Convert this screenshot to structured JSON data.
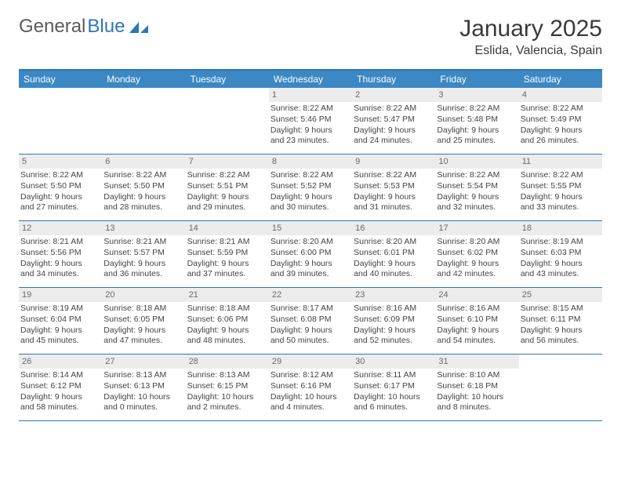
{
  "logo": {
    "word1": "General",
    "word2": "Blue"
  },
  "header": {
    "title": "January 2025",
    "location": "Eslida, Valencia, Spain"
  },
  "dayNames": [
    "Sunday",
    "Monday",
    "Tuesday",
    "Wednesday",
    "Thursday",
    "Friday",
    "Saturday"
  ],
  "colors": {
    "header_bar": "#3b88c4",
    "border": "#2d77b8",
    "daynum_bg": "#ececec",
    "text": "#333333",
    "logo_gray": "#5a5a5a",
    "logo_blue": "#2d77b8",
    "bg": "#ffffff"
  },
  "typography": {
    "title_fontsize_pt": 22,
    "location_fontsize_pt": 12,
    "dayhead_fontsize_pt": 9,
    "cell_fontsize_pt": 8
  },
  "layout": {
    "columns": 7,
    "rows": 5,
    "first_weekday_index": 3
  },
  "weeks": [
    [
      {
        "day": ""
      },
      {
        "day": ""
      },
      {
        "day": ""
      },
      {
        "day": "1",
        "sunrise": "Sunrise: 8:22 AM",
        "sunset": "Sunset: 5:46 PM",
        "daylight1": "Daylight: 9 hours",
        "daylight2": "and 23 minutes."
      },
      {
        "day": "2",
        "sunrise": "Sunrise: 8:22 AM",
        "sunset": "Sunset: 5:47 PM",
        "daylight1": "Daylight: 9 hours",
        "daylight2": "and 24 minutes."
      },
      {
        "day": "3",
        "sunrise": "Sunrise: 8:22 AM",
        "sunset": "Sunset: 5:48 PM",
        "daylight1": "Daylight: 9 hours",
        "daylight2": "and 25 minutes."
      },
      {
        "day": "4",
        "sunrise": "Sunrise: 8:22 AM",
        "sunset": "Sunset: 5:49 PM",
        "daylight1": "Daylight: 9 hours",
        "daylight2": "and 26 minutes."
      }
    ],
    [
      {
        "day": "5",
        "sunrise": "Sunrise: 8:22 AM",
        "sunset": "Sunset: 5:50 PM",
        "daylight1": "Daylight: 9 hours",
        "daylight2": "and 27 minutes."
      },
      {
        "day": "6",
        "sunrise": "Sunrise: 8:22 AM",
        "sunset": "Sunset: 5:50 PM",
        "daylight1": "Daylight: 9 hours",
        "daylight2": "and 28 minutes."
      },
      {
        "day": "7",
        "sunrise": "Sunrise: 8:22 AM",
        "sunset": "Sunset: 5:51 PM",
        "daylight1": "Daylight: 9 hours",
        "daylight2": "and 29 minutes."
      },
      {
        "day": "8",
        "sunrise": "Sunrise: 8:22 AM",
        "sunset": "Sunset: 5:52 PM",
        "daylight1": "Daylight: 9 hours",
        "daylight2": "and 30 minutes."
      },
      {
        "day": "9",
        "sunrise": "Sunrise: 8:22 AM",
        "sunset": "Sunset: 5:53 PM",
        "daylight1": "Daylight: 9 hours",
        "daylight2": "and 31 minutes."
      },
      {
        "day": "10",
        "sunrise": "Sunrise: 8:22 AM",
        "sunset": "Sunset: 5:54 PM",
        "daylight1": "Daylight: 9 hours",
        "daylight2": "and 32 minutes."
      },
      {
        "day": "11",
        "sunrise": "Sunrise: 8:22 AM",
        "sunset": "Sunset: 5:55 PM",
        "daylight1": "Daylight: 9 hours",
        "daylight2": "and 33 minutes."
      }
    ],
    [
      {
        "day": "12",
        "sunrise": "Sunrise: 8:21 AM",
        "sunset": "Sunset: 5:56 PM",
        "daylight1": "Daylight: 9 hours",
        "daylight2": "and 34 minutes."
      },
      {
        "day": "13",
        "sunrise": "Sunrise: 8:21 AM",
        "sunset": "Sunset: 5:57 PM",
        "daylight1": "Daylight: 9 hours",
        "daylight2": "and 36 minutes."
      },
      {
        "day": "14",
        "sunrise": "Sunrise: 8:21 AM",
        "sunset": "Sunset: 5:59 PM",
        "daylight1": "Daylight: 9 hours",
        "daylight2": "and 37 minutes."
      },
      {
        "day": "15",
        "sunrise": "Sunrise: 8:20 AM",
        "sunset": "Sunset: 6:00 PM",
        "daylight1": "Daylight: 9 hours",
        "daylight2": "and 39 minutes."
      },
      {
        "day": "16",
        "sunrise": "Sunrise: 8:20 AM",
        "sunset": "Sunset: 6:01 PM",
        "daylight1": "Daylight: 9 hours",
        "daylight2": "and 40 minutes."
      },
      {
        "day": "17",
        "sunrise": "Sunrise: 8:20 AM",
        "sunset": "Sunset: 6:02 PM",
        "daylight1": "Daylight: 9 hours",
        "daylight2": "and 42 minutes."
      },
      {
        "day": "18",
        "sunrise": "Sunrise: 8:19 AM",
        "sunset": "Sunset: 6:03 PM",
        "daylight1": "Daylight: 9 hours",
        "daylight2": "and 43 minutes."
      }
    ],
    [
      {
        "day": "19",
        "sunrise": "Sunrise: 8:19 AM",
        "sunset": "Sunset: 6:04 PM",
        "daylight1": "Daylight: 9 hours",
        "daylight2": "and 45 minutes."
      },
      {
        "day": "20",
        "sunrise": "Sunrise: 8:18 AM",
        "sunset": "Sunset: 6:05 PM",
        "daylight1": "Daylight: 9 hours",
        "daylight2": "and 47 minutes."
      },
      {
        "day": "21",
        "sunrise": "Sunrise: 8:18 AM",
        "sunset": "Sunset: 6:06 PM",
        "daylight1": "Daylight: 9 hours",
        "daylight2": "and 48 minutes."
      },
      {
        "day": "22",
        "sunrise": "Sunrise: 8:17 AM",
        "sunset": "Sunset: 6:08 PM",
        "daylight1": "Daylight: 9 hours",
        "daylight2": "and 50 minutes."
      },
      {
        "day": "23",
        "sunrise": "Sunrise: 8:16 AM",
        "sunset": "Sunset: 6:09 PM",
        "daylight1": "Daylight: 9 hours",
        "daylight2": "and 52 minutes."
      },
      {
        "day": "24",
        "sunrise": "Sunrise: 8:16 AM",
        "sunset": "Sunset: 6:10 PM",
        "daylight1": "Daylight: 9 hours",
        "daylight2": "and 54 minutes."
      },
      {
        "day": "25",
        "sunrise": "Sunrise: 8:15 AM",
        "sunset": "Sunset: 6:11 PM",
        "daylight1": "Daylight: 9 hours",
        "daylight2": "and 56 minutes."
      }
    ],
    [
      {
        "day": "26",
        "sunrise": "Sunrise: 8:14 AM",
        "sunset": "Sunset: 6:12 PM",
        "daylight1": "Daylight: 9 hours",
        "daylight2": "and 58 minutes."
      },
      {
        "day": "27",
        "sunrise": "Sunrise: 8:13 AM",
        "sunset": "Sunset: 6:13 PM",
        "daylight1": "Daylight: 10 hours",
        "daylight2": "and 0 minutes."
      },
      {
        "day": "28",
        "sunrise": "Sunrise: 8:13 AM",
        "sunset": "Sunset: 6:15 PM",
        "daylight1": "Daylight: 10 hours",
        "daylight2": "and 2 minutes."
      },
      {
        "day": "29",
        "sunrise": "Sunrise: 8:12 AM",
        "sunset": "Sunset: 6:16 PM",
        "daylight1": "Daylight: 10 hours",
        "daylight2": "and 4 minutes."
      },
      {
        "day": "30",
        "sunrise": "Sunrise: 8:11 AM",
        "sunset": "Sunset: 6:17 PM",
        "daylight1": "Daylight: 10 hours",
        "daylight2": "and 6 minutes."
      },
      {
        "day": "31",
        "sunrise": "Sunrise: 8:10 AM",
        "sunset": "Sunset: 6:18 PM",
        "daylight1": "Daylight: 10 hours",
        "daylight2": "and 8 minutes."
      },
      {
        "day": ""
      }
    ]
  ]
}
